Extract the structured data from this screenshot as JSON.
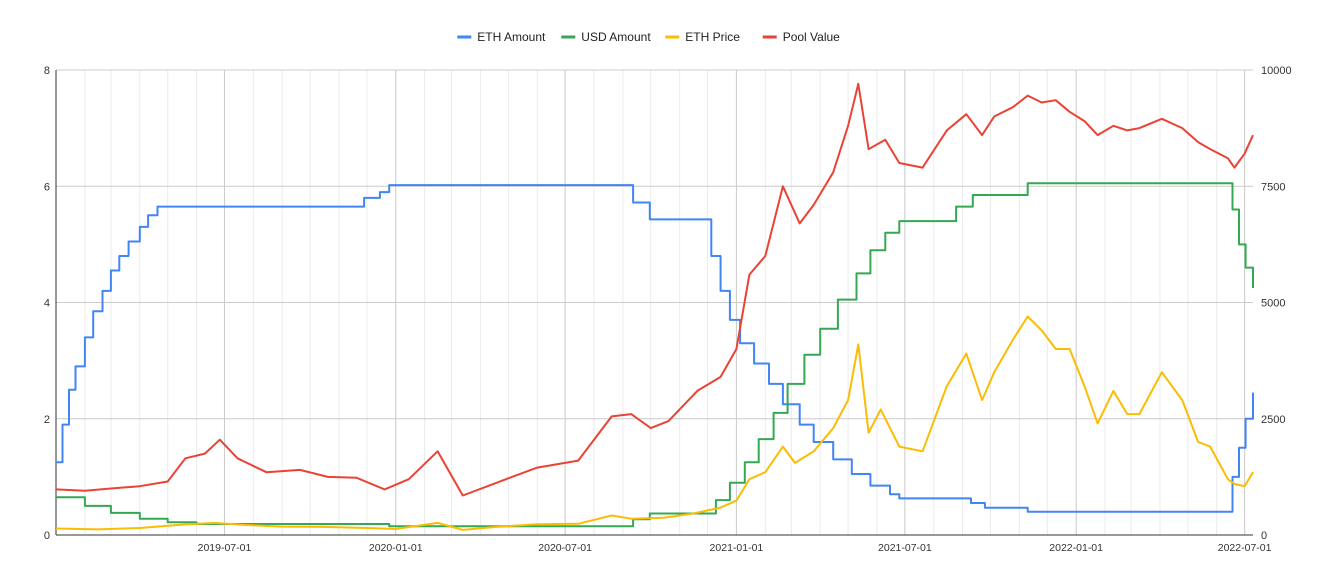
{
  "chart_data": {
    "type": "line",
    "title": "",
    "xlabel": "",
    "ylabel": "",
    "y2label": "",
    "legend_position": "top",
    "grid": true,
    "x_tick_labels": [
      "2019-07-01",
      "2020-01-01",
      "2020-07-01",
      "2021-01-01",
      "2021-07-01",
      "2022-01-01",
      "2022-07-01"
    ],
    "x_range": [
      "2019-01-01",
      "2022-07-10"
    ],
    "y_left": {
      "ticks": [
        "0",
        "2",
        "4",
        "6",
        "8"
      ],
      "range": [
        0,
        8
      ]
    },
    "y_right": {
      "ticks": [
        "0",
        "2500",
        "5000",
        "7500",
        "10000"
      ],
      "range": [
        0,
        10000
      ]
    },
    "series": [
      {
        "name": "ETH Amount",
        "color": "#4285f4",
        "axis": "left",
        "points": [
          [
            "2019-01-01",
            1.25
          ],
          [
            "2019-01-08",
            1.9
          ],
          [
            "2019-01-15",
            2.5
          ],
          [
            "2019-01-22",
            2.9
          ],
          [
            "2019-02-01",
            3.4
          ],
          [
            "2019-02-10",
            3.85
          ],
          [
            "2019-02-20",
            4.2
          ],
          [
            "2019-03-01",
            4.55
          ],
          [
            "2019-03-10",
            4.8
          ],
          [
            "2019-03-20",
            5.05
          ],
          [
            "2019-04-01",
            5.3
          ],
          [
            "2019-04-10",
            5.5
          ],
          [
            "2019-04-20",
            5.65
          ],
          [
            "2019-06-01",
            5.65
          ],
          [
            "2019-09-01",
            5.65
          ],
          [
            "2019-11-20",
            5.65
          ],
          [
            "2019-11-28",
            5.8
          ],
          [
            "2019-12-15",
            5.9
          ],
          [
            "2019-12-25",
            6.02
          ],
          [
            "2020-03-01",
            6.02
          ],
          [
            "2020-06-01",
            6.02
          ],
          [
            "2020-09-10",
            6.02
          ],
          [
            "2020-09-12",
            5.72
          ],
          [
            "2020-09-28",
            5.72
          ],
          [
            "2020-09-30",
            5.43
          ],
          [
            "2020-11-27",
            5.43
          ],
          [
            "2020-12-05",
            4.8
          ],
          [
            "2020-12-15",
            4.2
          ],
          [
            "2020-12-25",
            3.7
          ],
          [
            "2021-01-05",
            3.3
          ],
          [
            "2021-01-20",
            2.95
          ],
          [
            "2021-02-05",
            2.6
          ],
          [
            "2021-02-20",
            2.25
          ],
          [
            "2021-03-10",
            1.9
          ],
          [
            "2021-03-25",
            1.6
          ],
          [
            "2021-04-15",
            1.3
          ],
          [
            "2021-05-05",
            1.05
          ],
          [
            "2021-05-25",
            0.85
          ],
          [
            "2021-06-15",
            0.7
          ],
          [
            "2021-06-25",
            0.63
          ],
          [
            "2021-08-10",
            0.63
          ],
          [
            "2021-09-10",
            0.55
          ],
          [
            "2021-09-25",
            0.47
          ],
          [
            "2021-10-25",
            0.47
          ],
          [
            "2021-11-10",
            0.4
          ],
          [
            "2022-06-01",
            0.4
          ],
          [
            "2022-06-12",
            0.4
          ],
          [
            "2022-06-18",
            1.0
          ],
          [
            "2022-06-25",
            1.5
          ],
          [
            "2022-07-02",
            2.0
          ],
          [
            "2022-07-10",
            2.45
          ]
        ]
      },
      {
        "name": "USD Amount",
        "color": "#34a853",
        "axis": "left",
        "points": [
          [
            "2019-01-01",
            0.65
          ],
          [
            "2019-02-01",
            0.5
          ],
          [
            "2019-03-01",
            0.38
          ],
          [
            "2019-04-01",
            0.28
          ],
          [
            "2019-05-01",
            0.22
          ],
          [
            "2019-06-01",
            0.19
          ],
          [
            "2019-11-20",
            0.19
          ],
          [
            "2019-12-25",
            0.15
          ],
          [
            "2020-09-10",
            0.15
          ],
          [
            "2020-09-12",
            0.27
          ],
          [
            "2020-09-30",
            0.37
          ],
          [
            "2020-11-27",
            0.37
          ],
          [
            "2020-12-10",
            0.6
          ],
          [
            "2020-12-25",
            0.9
          ],
          [
            "2021-01-10",
            1.25
          ],
          [
            "2021-01-25",
            1.65
          ],
          [
            "2021-02-10",
            2.1
          ],
          [
            "2021-02-25",
            2.6
          ],
          [
            "2021-03-15",
            3.1
          ],
          [
            "2021-04-01",
            3.55
          ],
          [
            "2021-04-20",
            4.05
          ],
          [
            "2021-05-10",
            4.5
          ],
          [
            "2021-05-25",
            4.9
          ],
          [
            "2021-06-10",
            5.2
          ],
          [
            "2021-06-25",
            5.4
          ],
          [
            "2021-08-10",
            5.4
          ],
          [
            "2021-08-25",
            5.65
          ],
          [
            "2021-09-12",
            5.85
          ],
          [
            "2021-10-25",
            5.85
          ],
          [
            "2021-11-10",
            6.05
          ],
          [
            "2022-06-12",
            6.05
          ],
          [
            "2022-06-18",
            5.6
          ],
          [
            "2022-06-25",
            5.0
          ],
          [
            "2022-07-02",
            4.6
          ],
          [
            "2022-07-10",
            4.25
          ]
        ]
      },
      {
        "name": "ETH Price",
        "color": "#fbbc04",
        "axis": "right",
        "points": [
          [
            "2019-01-01",
            140
          ],
          [
            "2019-02-15",
            120
          ],
          [
            "2019-04-01",
            150
          ],
          [
            "2019-05-15",
            220
          ],
          [
            "2019-06-20",
            260
          ],
          [
            "2019-07-20",
            220
          ],
          [
            "2019-09-01",
            180
          ],
          [
            "2019-10-15",
            175
          ],
          [
            "2019-12-01",
            150
          ],
          [
            "2020-01-01",
            130
          ],
          [
            "2020-02-15",
            260
          ],
          [
            "2020-03-13",
            110
          ],
          [
            "2020-04-15",
            170
          ],
          [
            "2020-06-01",
            230
          ],
          [
            "2020-07-15",
            240
          ],
          [
            "2020-08-20",
            420
          ],
          [
            "2020-09-10",
            350
          ],
          [
            "2020-10-15",
            370
          ],
          [
            "2020-11-15",
            460
          ],
          [
            "2020-12-15",
            590
          ],
          [
            "2021-01-01",
            740
          ],
          [
            "2021-01-15",
            1200
          ],
          [
            "2021-02-01",
            1350
          ],
          [
            "2021-02-20",
            1900
          ],
          [
            "2021-03-05",
            1550
          ],
          [
            "2021-03-25",
            1800
          ],
          [
            "2021-04-15",
            2300
          ],
          [
            "2021-05-01",
            2900
          ],
          [
            "2021-05-12",
            4100
          ],
          [
            "2021-05-23",
            2200
          ],
          [
            "2021-06-05",
            2700
          ],
          [
            "2021-06-25",
            1900
          ],
          [
            "2021-07-20",
            1800
          ],
          [
            "2021-08-15",
            3200
          ],
          [
            "2021-09-05",
            3900
          ],
          [
            "2021-09-22",
            2900
          ],
          [
            "2021-10-05",
            3500
          ],
          [
            "2021-10-25",
            4200
          ],
          [
            "2021-11-10",
            4700
          ],
          [
            "2021-11-25",
            4400
          ],
          [
            "2021-12-10",
            4000
          ],
          [
            "2021-12-25",
            4000
          ],
          [
            "2022-01-10",
            3200
          ],
          [
            "2022-01-24",
            2400
          ],
          [
            "2022-02-10",
            3100
          ],
          [
            "2022-02-25",
            2600
          ],
          [
            "2022-03-10",
            2600
          ],
          [
            "2022-04-03",
            3500
          ],
          [
            "2022-04-25",
            2900
          ],
          [
            "2022-05-12",
            2000
          ],
          [
            "2022-05-25",
            1900
          ],
          [
            "2022-06-13",
            1200
          ],
          [
            "2022-06-20",
            1100
          ],
          [
            "2022-07-01",
            1050
          ],
          [
            "2022-07-10",
            1350
          ]
        ]
      },
      {
        "name": "Pool Value",
        "color": "#ea4335",
        "axis": "right",
        "points": [
          [
            "2019-01-01",
            980
          ],
          [
            "2019-02-01",
            950
          ],
          [
            "2019-03-01",
            1000
          ],
          [
            "2019-04-01",
            1050
          ],
          [
            "2019-05-01",
            1150
          ],
          [
            "2019-05-20",
            1650
          ],
          [
            "2019-06-10",
            1750
          ],
          [
            "2019-06-26",
            2050
          ],
          [
            "2019-07-15",
            1650
          ],
          [
            "2019-08-15",
            1350
          ],
          [
            "2019-09-20",
            1400
          ],
          [
            "2019-10-20",
            1250
          ],
          [
            "2019-11-20",
            1230
          ],
          [
            "2019-12-20",
            980
          ],
          [
            "2020-01-15",
            1200
          ],
          [
            "2020-02-15",
            1800
          ],
          [
            "2020-03-13",
            850
          ],
          [
            "2020-04-15",
            1100
          ],
          [
            "2020-06-01",
            1450
          ],
          [
            "2020-07-15",
            1600
          ],
          [
            "2020-08-20",
            2550
          ],
          [
            "2020-09-10",
            2600
          ],
          [
            "2020-10-01",
            2300
          ],
          [
            "2020-10-20",
            2450
          ],
          [
            "2020-11-20",
            3100
          ],
          [
            "2020-12-15",
            3400
          ],
          [
            "2021-01-01",
            4000
          ],
          [
            "2021-01-15",
            5600
          ],
          [
            "2021-02-01",
            6000
          ],
          [
            "2021-02-20",
            7500
          ],
          [
            "2021-03-10",
            6700
          ],
          [
            "2021-03-25",
            7100
          ],
          [
            "2021-04-15",
            7800
          ],
          [
            "2021-05-01",
            8800
          ],
          [
            "2021-05-12",
            9700
          ],
          [
            "2021-05-23",
            8300
          ],
          [
            "2021-06-10",
            8500
          ],
          [
            "2021-06-25",
            8000
          ],
          [
            "2021-07-20",
            7900
          ],
          [
            "2021-08-15",
            8700
          ],
          [
            "2021-09-05",
            9050
          ],
          [
            "2021-09-22",
            8600
          ],
          [
            "2021-10-05",
            9000
          ],
          [
            "2021-10-25",
            9200
          ],
          [
            "2021-11-10",
            9450
          ],
          [
            "2021-11-25",
            9300
          ],
          [
            "2021-12-10",
            9350
          ],
          [
            "2021-12-25",
            9100
          ],
          [
            "2022-01-10",
            8900
          ],
          [
            "2022-01-24",
            8600
          ],
          [
            "2022-02-10",
            8800
          ],
          [
            "2022-02-25",
            8700
          ],
          [
            "2022-03-10",
            8750
          ],
          [
            "2022-04-03",
            8950
          ],
          [
            "2022-04-25",
            8750
          ],
          [
            "2022-05-12",
            8450
          ],
          [
            "2022-05-25",
            8300
          ],
          [
            "2022-06-13",
            8100
          ],
          [
            "2022-06-20",
            7900
          ],
          [
            "2022-07-01",
            8200
          ],
          [
            "2022-07-10",
            8600
          ]
        ]
      }
    ]
  }
}
